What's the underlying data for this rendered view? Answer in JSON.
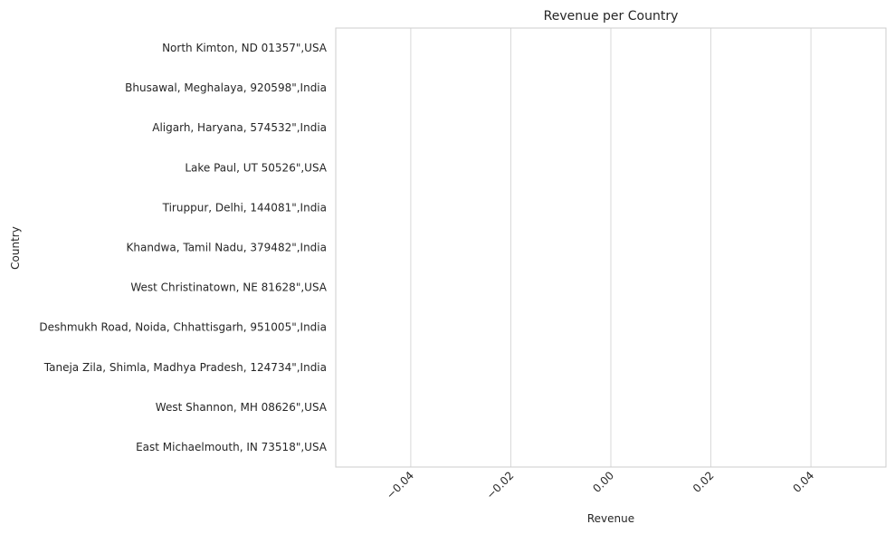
{
  "chart_data": {
    "type": "bar",
    "orientation": "horizontal",
    "title": "Revenue per Country",
    "xlabel": "Revenue",
    "ylabel": "Country",
    "categories": [
      "North Kimton, ND 01357\",USA",
      "Bhusawal, Meghalaya, 920598\",India",
      "Aligarh, Haryana, 574532\",India",
      "Lake Paul, UT 50526\",USA",
      "Tiruppur, Delhi, 144081\",India",
      "Khandwa, Tamil Nadu, 379482\",India",
      "West Christinatown, NE 81628\",USA",
      "Deshmukh Road, Noida, Chhattisgarh, 951005\",India",
      "Taneja Zila, Shimla, Madhya Pradesh, 124734\",India",
      "West Shannon, MH 08626\",USA",
      "East Michaelmouth, IN 73518\",USA"
    ],
    "values": [
      0,
      0,
      0,
      0,
      0,
      0,
      0,
      0,
      0,
      0,
      0
    ],
    "xlim": [
      -0.055,
      0.055
    ],
    "xticks": [
      -0.04,
      -0.02,
      0.0,
      0.02,
      0.04
    ],
    "xtick_labels": [
      "−0.04",
      "−0.02",
      "0.00",
      "0.02",
      "0.04"
    ],
    "grid": "vertical",
    "colors": {
      "grid": "#d9d9d9",
      "frame": "#cccccc",
      "text": "#262626"
    }
  }
}
